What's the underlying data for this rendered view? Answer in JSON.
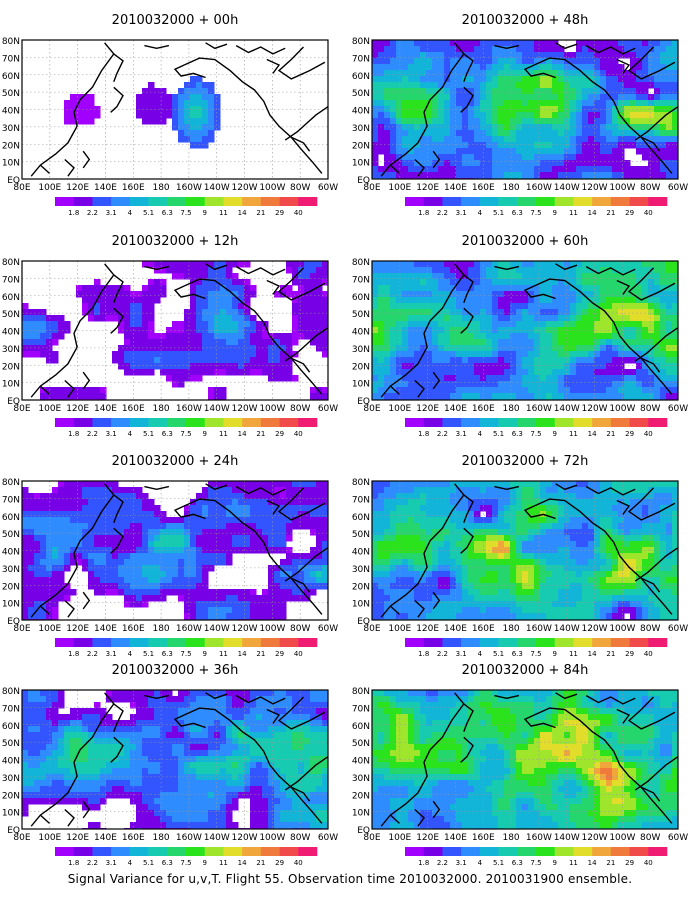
{
  "footer": "Signal Variance for u,v,T. Flight 55. Observation time 2010032000. 2010031900 ensemble.",
  "colorbar": {
    "labels": [
      "1.8",
      "2.2",
      "3.1",
      "4",
      "5.1",
      "6.3",
      "7.5",
      "9",
      "11",
      "14",
      "21",
      "29",
      "40"
    ],
    "colors": [
      "#a100ff",
      "#7700e6",
      "#3355ff",
      "#2f8cff",
      "#12b5d8",
      "#17cbb0",
      "#25d66d",
      "#2ae31d",
      "#9fe52c",
      "#e2dc2a",
      "#f0a63a",
      "#f07a3c",
      "#f04a4a",
      "#f01c74"
    ]
  },
  "x_tick_labels": [
    "80E",
    "100E",
    "120E",
    "140E",
    "160E",
    "180",
    "160W",
    "140W",
    "120W",
    "100W",
    "80W",
    "60W"
  ],
  "y_tick_labels": [
    "EQ",
    "10N",
    "20N",
    "30N",
    "40N",
    "50N",
    "60N",
    "70N",
    "80N"
  ],
  "chart_data": [
    {
      "type": "heatmap",
      "title": "2010032000 + 00h",
      "activity": 0.2,
      "xlim": [
        "80E",
        "60W"
      ],
      "ylim": [
        "EQ",
        "80N"
      ],
      "scale": [
        "1.8",
        "2.2",
        "3.1",
        "4",
        "5.1",
        "6.3",
        "7.5",
        "9",
        "11",
        "14",
        "21",
        "29",
        "40"
      ]
    },
    {
      "type": "heatmap",
      "title": "2010032000 + 12h",
      "activity": 0.35,
      "xlim": [
        "80E",
        "60W"
      ],
      "ylim": [
        "EQ",
        "80N"
      ],
      "scale": [
        "1.8",
        "2.2",
        "3.1",
        "4",
        "5.1",
        "6.3",
        "7.5",
        "9",
        "11",
        "14",
        "21",
        "29",
        "40"
      ]
    },
    {
      "type": "heatmap",
      "title": "2010032000 + 24h",
      "activity": 0.5,
      "xlim": [
        "80E",
        "60W"
      ],
      "ylim": [
        "EQ",
        "80N"
      ],
      "scale": [
        "1.8",
        "2.2",
        "3.1",
        "4",
        "5.1",
        "6.3",
        "7.5",
        "9",
        "11",
        "14",
        "21",
        "29",
        "40"
      ]
    },
    {
      "type": "heatmap",
      "title": "2010032000 + 36h",
      "activity": 0.62,
      "xlim": [
        "80E",
        "60W"
      ],
      "ylim": [
        "EQ",
        "80N"
      ],
      "scale": [
        "1.8",
        "2.2",
        "3.1",
        "4",
        "5.1",
        "6.3",
        "7.5",
        "9",
        "11",
        "14",
        "21",
        "29",
        "40"
      ]
    },
    {
      "type": "heatmap",
      "title": "2010032000 + 48h",
      "activity": 0.72,
      "xlim": [
        "80E",
        "60W"
      ],
      "ylim": [
        "EQ",
        "80N"
      ],
      "scale": [
        "1.8",
        "2.2",
        "3.1",
        "4",
        "5.1",
        "6.3",
        "7.5",
        "9",
        "11",
        "14",
        "21",
        "29",
        "40"
      ]
    },
    {
      "type": "heatmap",
      "title": "2010032000 + 60h",
      "activity": 0.8,
      "xlim": [
        "80E",
        "60W"
      ],
      "ylim": [
        "EQ",
        "80N"
      ],
      "scale": [
        "1.8",
        "2.2",
        "3.1",
        "4",
        "5.1",
        "6.3",
        "7.5",
        "9",
        "11",
        "14",
        "21",
        "29",
        "40"
      ]
    },
    {
      "type": "heatmap",
      "title": "2010032000 + 72h",
      "activity": 0.88,
      "xlim": [
        "80E",
        "60W"
      ],
      "ylim": [
        "EQ",
        "80N"
      ],
      "scale": [
        "1.8",
        "2.2",
        "3.1",
        "4",
        "5.1",
        "6.3",
        "7.5",
        "9",
        "11",
        "14",
        "21",
        "29",
        "40"
      ]
    },
    {
      "type": "heatmap",
      "title": "2010032000 + 84h",
      "activity": 0.95,
      "xlim": [
        "80E",
        "60W"
      ],
      "ylim": [
        "EQ",
        "80N"
      ],
      "scale": [
        "1.8",
        "2.2",
        "3.1",
        "4",
        "5.1",
        "6.3",
        "7.5",
        "9",
        "11",
        "14",
        "21",
        "29",
        "40"
      ]
    }
  ]
}
